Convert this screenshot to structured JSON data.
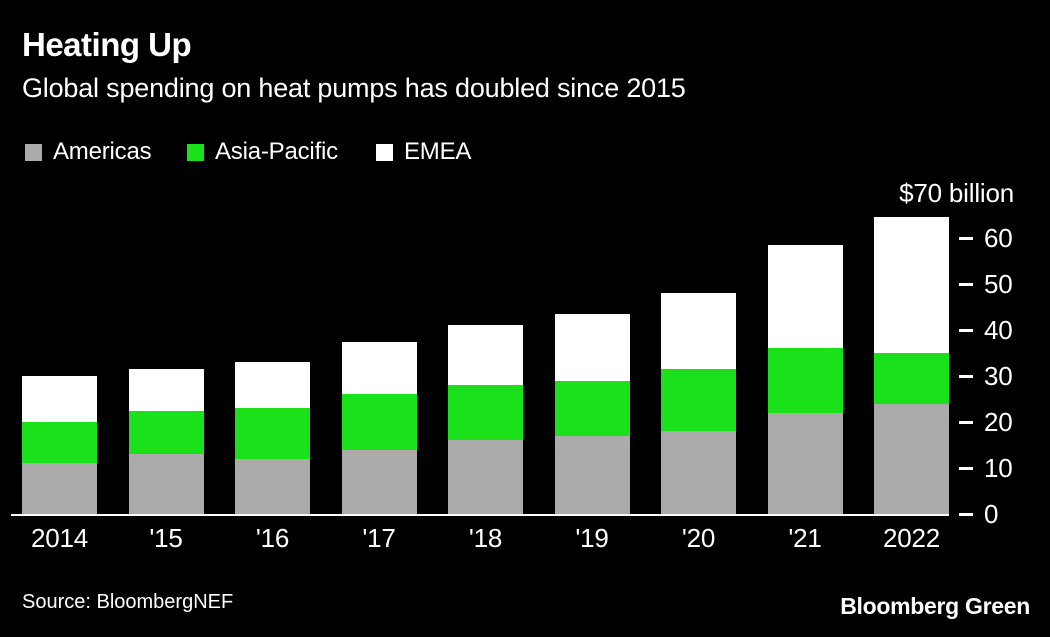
{
  "header": {
    "title": "Heating Up",
    "subtitle": "Global spending on heat pumps has doubled since 2015"
  },
  "legend": [
    {
      "label": "Americas",
      "color": "#ababab"
    },
    {
      "label": "Asia-Pacific",
      "color": "#1be11b"
    },
    {
      "label": "EMEA",
      "color": "#ffffff"
    }
  ],
  "chart_data": {
    "type": "bar",
    "stacked": true,
    "title": "Heating Up",
    "subtitle": "Global spending on heat pumps has doubled since 2015",
    "categories": [
      "2014",
      "'15",
      "'16",
      "'17",
      "'18",
      "'19",
      "'20",
      "'21",
      "2022"
    ],
    "series": [
      {
        "name": "Americas",
        "color": "#ababab",
        "values": [
          11,
          13,
          12,
          14,
          16,
          17,
          18,
          22,
          24
        ]
      },
      {
        "name": "Asia-Pacific",
        "color": "#1be11b",
        "values": [
          9,
          9.5,
          11,
          12,
          12,
          12,
          13.5,
          14,
          11
        ]
      },
      {
        "name": "EMEA",
        "color": "#ffffff",
        "values": [
          10,
          9,
          10,
          11.5,
          13,
          14.5,
          16.5,
          22.5,
          29.5
        ]
      }
    ],
    "totals": [
      30,
      31.5,
      33,
      37.5,
      41,
      43.5,
      48,
      58.5,
      64.5
    ],
    "unit": "billion USD",
    "axis_label": "$70 billion",
    "y_ticks": [
      0,
      10,
      20,
      30,
      40,
      50,
      60
    ],
    "ylim": [
      0,
      70
    ],
    "grid": false,
    "legend_position": "top",
    "axis_side": "right"
  },
  "footer": {
    "source": "Source: BloombergNEF",
    "brand": "Bloomberg Green"
  },
  "colors": {
    "background": "#000000",
    "text": "#ffffff",
    "americas": "#ababab",
    "asia_pacific": "#1be11b",
    "emea": "#ffffff"
  }
}
